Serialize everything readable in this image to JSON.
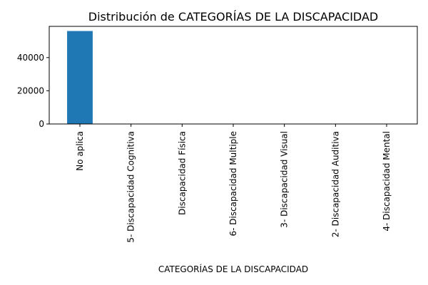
{
  "chart_data": {
    "type": "bar",
    "title": "Distribución de CATEGORÍAS DE LA DISCAPACIDAD",
    "xlabel": "CATEGORÍAS DE LA DISCAPACIDAD",
    "ylabel": "",
    "categories": [
      "No aplica",
      "5- Discapacidad Cognitiva",
      "Discapacidad Física",
      "6- Discapacidad Multiple",
      "3- Discapacidad Visual",
      "2- Discapacidad Auditiva",
      "4- Discapacidad Mental"
    ],
    "values": [
      56000,
      60,
      40,
      30,
      20,
      15,
      10
    ],
    "ylim": [
      0,
      58800
    ],
    "yticks": [
      0,
      20000,
      40000
    ],
    "ytick_labels": [
      "0",
      "20000",
      "40000"
    ],
    "bar_color": "#1f77b4",
    "grid": false,
    "legend": "none"
  }
}
